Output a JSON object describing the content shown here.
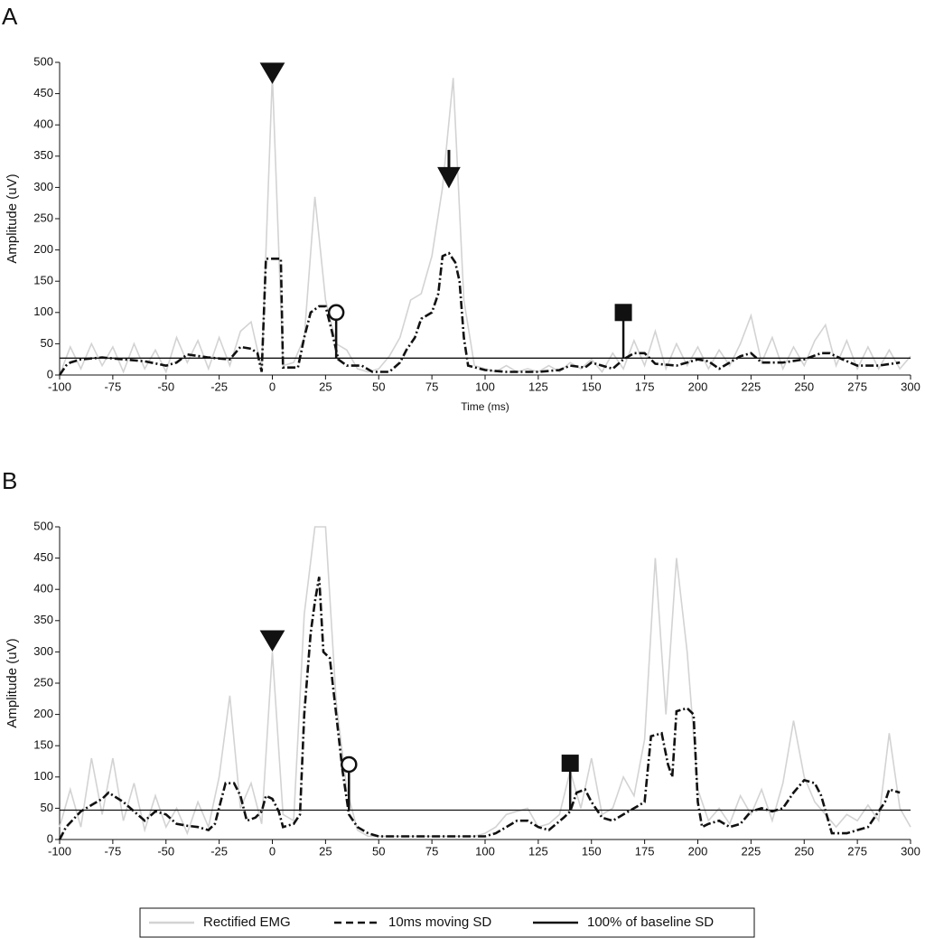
{
  "chart_data": [
    {
      "type": "line",
      "panel": "A",
      "xlabel": "Time (ms)",
      "ylabel": "Amplitude (uV)",
      "xlim": [
        -100,
        300
      ],
      "xticks": [
        -100,
        -75,
        -50,
        -25,
        0,
        25,
        50,
        75,
        100,
        125,
        150,
        175,
        200,
        225,
        250,
        275,
        300
      ],
      "ylim": [
        0,
        500
      ],
      "yticks": [
        0,
        50,
        100,
        150,
        200,
        250,
        300,
        350,
        400,
        450,
        500
      ],
      "series": [
        {
          "color": "#d3d3d3",
          "style": "solid",
          "x": [
            -100,
            -95,
            -90,
            -85,
            -80,
            -75,
            -70,
            -65,
            -60,
            -55,
            -50,
            -45,
            -40,
            -35,
            -30,
            -25,
            -20,
            -15,
            -10,
            -5,
            0,
            5,
            10,
            15,
            20,
            25,
            30,
            35,
            40,
            45,
            50,
            55,
            60,
            65,
            70,
            75,
            80,
            85,
            90,
            95,
            100,
            105,
            110,
            115,
            120,
            125,
            130,
            135,
            140,
            145,
            150,
            155,
            160,
            165,
            170,
            175,
            180,
            185,
            190,
            195,
            200,
            205,
            210,
            215,
            220,
            225,
            230,
            235,
            240,
            245,
            250,
            255,
            260,
            265,
            270,
            275,
            280,
            285,
            290,
            295,
            300
          ],
          "values": [
            0,
            45,
            10,
            50,
            15,
            45,
            5,
            50,
            10,
            40,
            5,
            60,
            20,
            55,
            10,
            60,
            15,
            70,
            85,
            10,
            480,
            15,
            20,
            60,
            285,
            120,
            50,
            40,
            10,
            5,
            10,
            30,
            60,
            120,
            130,
            190,
            300,
            475,
            120,
            15,
            10,
            5,
            15,
            5,
            10,
            5,
            15,
            5,
            20,
            10,
            25,
            5,
            35,
            10,
            55,
            15,
            70,
            10,
            50,
            15,
            45,
            10,
            40,
            15,
            50,
            95,
            20,
            60,
            10,
            45,
            15,
            55,
            80,
            15,
            55,
            10,
            45,
            10,
            40,
            10,
            30
          ]
        },
        {
          "color": "#111111",
          "style": "dashed",
          "x": [
            -100,
            -97,
            -95,
            -90,
            -80,
            -70,
            -60,
            -50,
            -45,
            -40,
            -30,
            -20,
            -15,
            -10,
            -7,
            -5,
            -3,
            4,
            5,
            12,
            15,
            18,
            22,
            25,
            28,
            31,
            35,
            42,
            47,
            55,
            60,
            63,
            67,
            70,
            75,
            78,
            80,
            83,
            86,
            88,
            90,
            92,
            100,
            110,
            125,
            135,
            140,
            147,
            150,
            160,
            165,
            170,
            175,
            180,
            190,
            200,
            205,
            210,
            220,
            225,
            230,
            240,
            250,
            258,
            262,
            268,
            275,
            285,
            295
          ],
          "values": [
            0,
            15,
            20,
            25,
            28,
            25,
            22,
            15,
            20,
            33,
            28,
            25,
            45,
            42,
            35,
            5,
            186,
            186,
            12,
            12,
            60,
            100,
            110,
            110,
            70,
            25,
            15,
            15,
            5,
            5,
            20,
            40,
            60,
            90,
            100,
            130,
            190,
            195,
            180,
            150,
            60,
            15,
            8,
            5,
            5,
            8,
            15,
            12,
            20,
            10,
            25,
            35,
            35,
            18,
            15,
            25,
            22,
            10,
            30,
            35,
            20,
            20,
            25,
            35,
            35,
            25,
            15,
            15,
            20
          ]
        },
        {
          "color": "#111111",
          "style": "solid",
          "x": [
            -100,
            300
          ],
          "values": [
            27,
            27
          ]
        }
      ],
      "markers": [
        {
          "shape": "triangle",
          "x": 0,
          "y": 480
        },
        {
          "shape": "arrow",
          "x": 83,
          "y": 300,
          "y_tail": 360
        },
        {
          "shape": "circle",
          "x": 30,
          "y": 100
        },
        {
          "shape": "square",
          "x": 165,
          "y": 100
        }
      ]
    },
    {
      "type": "line",
      "panel": "B",
      "ylabel": "Amplitude (uV)",
      "xlim": [
        -100,
        300
      ],
      "xticks": [
        -100,
        -75,
        -50,
        -25,
        0,
        25,
        50,
        75,
        100,
        125,
        150,
        175,
        200,
        225,
        250,
        275,
        300
      ],
      "ylim": [
        0,
        500
      ],
      "yticks": [
        0,
        50,
        100,
        150,
        200,
        250,
        300,
        350,
        400,
        450,
        500
      ],
      "legend": "bottom",
      "series": [
        {
          "name": "Rectified EMG",
          "color": "#d3d3d3",
          "style": "solid",
          "x": [
            -100,
            -95,
            -90,
            -85,
            -80,
            -75,
            -70,
            -65,
            -60,
            -55,
            -50,
            -45,
            -40,
            -35,
            -30,
            -25,
            -20,
            -15,
            -10,
            -5,
            0,
            5,
            10,
            15,
            20,
            25,
            30,
            35,
            40,
            45,
            50,
            55,
            60,
            65,
            70,
            75,
            80,
            85,
            90,
            95,
            100,
            105,
            110,
            115,
            120,
            125,
            130,
            135,
            140,
            145,
            150,
            155,
            160,
            165,
            170,
            175,
            180,
            185,
            190,
            195,
            200,
            205,
            210,
            215,
            220,
            225,
            230,
            235,
            240,
            245,
            250,
            255,
            260,
            265,
            270,
            275,
            280,
            285,
            290,
            295,
            300
          ],
          "values": [
            20,
            80,
            20,
            130,
            40,
            130,
            30,
            90,
            15,
            70,
            20,
            50,
            10,
            60,
            20,
            100,
            230,
            50,
            90,
            25,
            300,
            40,
            30,
            360,
            500,
            500,
            220,
            80,
            15,
            5,
            5,
            5,
            5,
            5,
            5,
            5,
            5,
            5,
            5,
            5,
            10,
            20,
            40,
            45,
            50,
            20,
            25,
            40,
            110,
            50,
            130,
            40,
            50,
            100,
            70,
            160,
            450,
            200,
            450,
            300,
            80,
            30,
            50,
            25,
            70,
            40,
            80,
            30,
            90,
            190,
            100,
            60,
            40,
            20,
            40,
            30,
            55,
            30,
            170,
            50,
            20
          ]
        },
        {
          "name": "10ms moving SD",
          "color": "#111111",
          "style": "dashed",
          "x": [
            -100,
            -97,
            -90,
            -85,
            -80,
            -77,
            -70,
            -65,
            -60,
            -55,
            -50,
            -45,
            -40,
            -35,
            -30,
            -27,
            -22,
            -18,
            -15,
            -12,
            -8,
            -5,
            -3,
            0,
            3,
            5,
            10,
            13,
            15,
            18,
            20,
            22,
            24,
            27,
            30,
            33,
            36,
            40,
            45,
            50,
            70,
            90,
            100,
            105,
            110,
            115,
            120,
            125,
            130,
            137,
            140,
            143,
            147,
            150,
            155,
            160,
            165,
            170,
            175,
            178,
            183,
            186,
            188,
            190,
            195,
            198,
            200,
            202,
            205,
            210,
            215,
            220,
            225,
            230,
            235,
            240,
            245,
            250,
            255,
            258,
            263,
            270,
            280,
            288,
            290,
            295
          ],
          "values": [
            0,
            20,
            45,
            55,
            65,
            75,
            60,
            45,
            30,
            45,
            40,
            25,
            22,
            20,
            15,
            25,
            90,
            90,
            70,
            30,
            35,
            45,
            70,
            65,
            45,
            20,
            25,
            40,
            200,
            330,
            380,
            420,
            300,
            290,
            200,
            110,
            40,
            20,
            10,
            5,
            5,
            5,
            5,
            10,
            20,
            30,
            30,
            20,
            15,
            35,
            45,
            75,
            80,
            60,
            35,
            30,
            40,
            50,
            60,
            165,
            170,
            120,
            100,
            205,
            210,
            200,
            60,
            20,
            25,
            30,
            20,
            25,
            45,
            50,
            45,
            50,
            75,
            95,
            90,
            70,
            10,
            10,
            20,
            60,
            80,
            75
          ]
        },
        {
          "name": "100% of baseline SD",
          "color": "#111111",
          "style": "solid",
          "x": [
            -100,
            300
          ],
          "values": [
            47,
            47
          ]
        }
      ],
      "markers": [
        {
          "shape": "triangle",
          "x": 0,
          "y": 315
        },
        {
          "shape": "circle",
          "x": 36,
          "y": 120
        },
        {
          "shape": "square",
          "x": 140,
          "y": 122
        }
      ]
    }
  ]
}
